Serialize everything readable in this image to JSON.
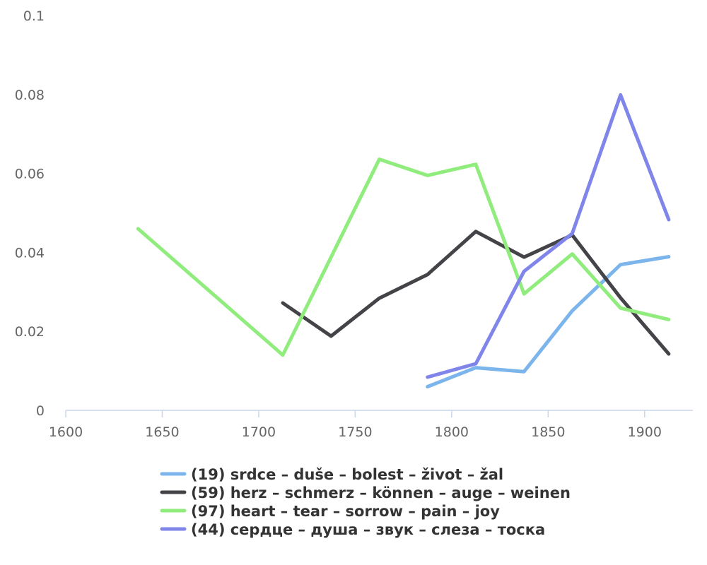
{
  "chart_data": {
    "type": "line",
    "title": "",
    "xlabel": "",
    "ylabel": "",
    "xlim": [
      1600,
      1925
    ],
    "ylim": [
      0,
      0.1
    ],
    "x_ticks": [
      1600,
      1650,
      1700,
      1750,
      1800,
      1850,
      1900
    ],
    "x_tick_labels": [
      "1600",
      "1650",
      "1700",
      "1750",
      "1800",
      "1850",
      "1900"
    ],
    "y_ticks": [
      0,
      0.02,
      0.04,
      0.06,
      0.08,
      0.1
    ],
    "y_tick_labels": [
      "0",
      "0.02",
      "0.04",
      "0.06",
      "0.08",
      "0.1"
    ],
    "grid": false,
    "legend_position": "bottom",
    "series": [
      {
        "name": "(19) srdce – duše – bolest – život – žal",
        "color": "#7cb5ec",
        "points": [
          [
            1787.5,
            0.006
          ],
          [
            1812.5,
            0.0108
          ],
          [
            1837.5,
            0.0098
          ],
          [
            1862.5,
            0.0252
          ],
          [
            1887.5,
            0.0369
          ],
          [
            1912.5,
            0.0389
          ]
        ]
      },
      {
        "name": "(59) herz – schmerz – können – auge – weinen",
        "color": "#434348",
        "points": [
          [
            1712.5,
            0.0272
          ],
          [
            1737.5,
            0.0188
          ],
          [
            1762.5,
            0.0284
          ],
          [
            1787.5,
            0.0344
          ],
          [
            1812.5,
            0.0453
          ],
          [
            1837.5,
            0.0388
          ],
          [
            1862.5,
            0.0444
          ],
          [
            1887.5,
            0.0285
          ],
          [
            1912.5,
            0.0143
          ]
        ]
      },
      {
        "name": "(97) heart – tear – sorrow – pain – joy",
        "color": "#90ed7d",
        "points": [
          [
            1637.5,
            0.046
          ],
          [
            1712.5,
            0.014
          ],
          [
            1762.5,
            0.0636
          ],
          [
            1787.5,
            0.0595
          ],
          [
            1812.5,
            0.0623
          ],
          [
            1837.5,
            0.0295
          ],
          [
            1862.5,
            0.0396
          ],
          [
            1887.5,
            0.0259
          ],
          [
            1912.5,
            0.023
          ]
        ]
      },
      {
        "name": "(44) сердце – душа – звук – слеза – тоска",
        "color": "#8085e9",
        "points": [
          [
            1787.5,
            0.0084
          ],
          [
            1812.5,
            0.0118
          ],
          [
            1837.5,
            0.0352
          ],
          [
            1862.5,
            0.0448
          ],
          [
            1887.5,
            0.0799
          ],
          [
            1912.5,
            0.0483
          ]
        ]
      }
    ]
  }
}
